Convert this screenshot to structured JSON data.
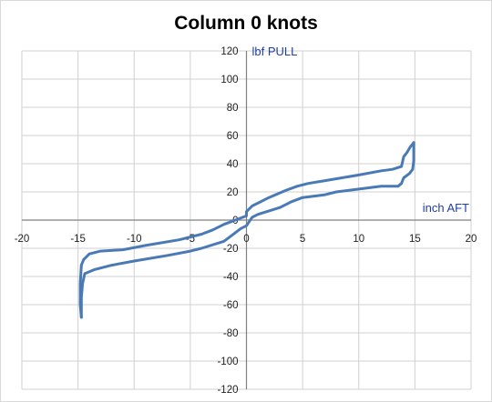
{
  "chart_data": {
    "type": "line",
    "title": "Column 0 knots",
    "xlabel": "inch AFT",
    "ylabel": "lbf PULL",
    "xlim": [
      -20,
      20
    ],
    "ylim": [
      -120,
      120
    ],
    "x_ticks": [
      -20,
      -15,
      -10,
      -5,
      0,
      5,
      10,
      15,
      20
    ],
    "y_ticks": [
      120,
      100,
      80,
      60,
      40,
      20,
      0,
      -20,
      -40,
      -60,
      -80,
      -100,
      -120
    ],
    "grid": true,
    "legend": "none",
    "colors": {
      "line": "#4a7ab5",
      "axis": "#808080",
      "grid": "#d0d0d0",
      "axis_label": "#1f3fa8"
    },
    "series": [
      {
        "points": [
          [
            -14.7,
            -69
          ],
          [
            -14.7,
            -55
          ],
          [
            -14.6,
            -45
          ],
          [
            -14.4,
            -38
          ],
          [
            -13.5,
            -35
          ],
          [
            -12,
            -32
          ],
          [
            -10,
            -29
          ],
          [
            -7,
            -25
          ],
          [
            -5,
            -22
          ],
          [
            -4,
            -20
          ],
          [
            -2,
            -15
          ],
          [
            -1,
            -9
          ],
          [
            -0.5,
            -6
          ],
          [
            0,
            -4
          ],
          [
            0.5,
            2
          ],
          [
            1,
            4
          ],
          [
            3,
            9
          ],
          [
            4,
            13
          ],
          [
            5,
            16
          ],
          [
            7,
            18
          ],
          [
            8,
            20
          ],
          [
            10,
            22
          ],
          [
            12,
            24
          ],
          [
            13.5,
            24
          ],
          [
            13.8,
            26
          ],
          [
            14,
            30
          ],
          [
            14.5,
            33
          ],
          [
            14.8,
            36
          ],
          [
            14.9,
            42
          ],
          [
            14.9,
            55
          ]
        ]
      },
      {
        "points": [
          [
            14.9,
            55
          ],
          [
            14.6,
            52
          ],
          [
            14.3,
            48
          ],
          [
            14,
            45
          ],
          [
            13.8,
            38
          ],
          [
            13,
            36
          ],
          [
            12,
            35
          ],
          [
            10,
            32
          ],
          [
            8.5,
            30
          ],
          [
            7,
            28
          ],
          [
            5.5,
            26
          ],
          [
            4.5,
            24
          ],
          [
            3.5,
            21
          ],
          [
            2,
            16
          ],
          [
            0.5,
            10
          ],
          [
            0,
            6
          ],
          [
            0,
            3
          ],
          [
            -1,
            0
          ],
          [
            -2,
            -3
          ],
          [
            -3,
            -7
          ],
          [
            -4,
            -10
          ],
          [
            -6,
            -14
          ],
          [
            -9,
            -18
          ],
          [
            -11,
            -21
          ],
          [
            -13,
            -22
          ],
          [
            -14,
            -24
          ],
          [
            -14.5,
            -28
          ],
          [
            -14.7,
            -32
          ],
          [
            -14.8,
            -45
          ],
          [
            -14.8,
            -60
          ],
          [
            -14.7,
            -69
          ]
        ]
      }
    ]
  }
}
